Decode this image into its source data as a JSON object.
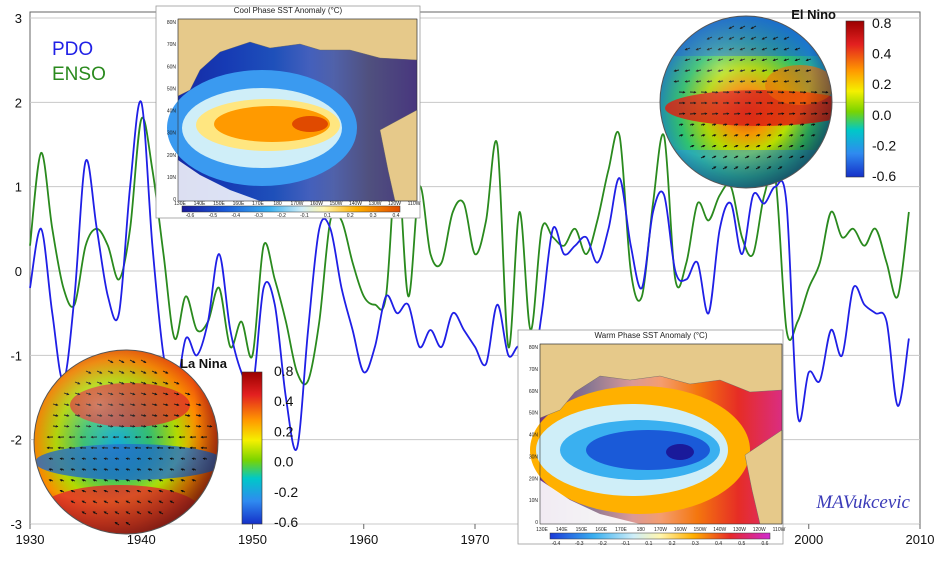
{
  "chart_data": {
    "type": "line",
    "title": "",
    "xlabel": "",
    "ylabel": "",
    "xlim": [
      1930,
      2010
    ],
    "ylim": [
      -3,
      3
    ],
    "x_ticks": [
      "1930",
      "1940",
      "1950",
      "1960",
      "1970",
      "1980",
      "1990",
      "2000",
      "2010"
    ],
    "y_ticks": [
      "3",
      "2",
      "1",
      "0",
      "-1",
      "-2",
      "-3"
    ],
    "grid": true,
    "legend": "top-left",
    "series": [
      {
        "name": "PDO",
        "color": "#1f1fe6",
        "x": [
          1930,
          1931,
          1932,
          1933,
          1934,
          1935,
          1936,
          1937,
          1938,
          1939,
          1940,
          1941,
          1942,
          1943,
          1944,
          1945,
          1946,
          1947,
          1948,
          1949,
          1950,
          1951,
          1952,
          1953,
          1954,
          1955,
          1956,
          1957,
          1958,
          1959,
          1960,
          1961,
          1962,
          1963,
          1964,
          1965,
          1966,
          1967,
          1968,
          1969,
          1970,
          1971,
          1972,
          1973,
          1974,
          1975,
          1976,
          1977,
          1978,
          1979,
          1980,
          1981,
          1982,
          1983,
          1984,
          1985,
          1986,
          1987,
          1988,
          1989,
          1990,
          1991,
          1992,
          1993,
          1994,
          1995,
          1996,
          1997,
          1998,
          1999,
          2000,
          2001,
          2002,
          2003,
          2004,
          2005,
          2006,
          2007,
          2008,
          2009
        ],
        "y": [
          -0.2,
          0.5,
          -0.5,
          -1.3,
          -0.3,
          1.3,
          0.5,
          -0.3,
          -0.5,
          1.0,
          2.0,
          0.3,
          -1.0,
          -1.5,
          -0.8,
          -1.0,
          -0.6,
          0.2,
          -0.7,
          -1.2,
          -1.4,
          -0.2,
          -0.4,
          -1.5,
          -2.1,
          -0.7,
          0.5,
          0.5,
          -0.2,
          -0.7,
          -1.2,
          -0.9,
          -0.3,
          -0.5,
          -0.4,
          -0.9,
          -0.7,
          -0.9,
          -0.5,
          -0.7,
          -0.9,
          -1.1,
          -0.4,
          -1.0,
          -0.9,
          -1.3,
          -0.5,
          0.5,
          0.2,
          0.3,
          0.4,
          0.1,
          0.5,
          1.1,
          0.3,
          -0.2,
          0.7,
          0.9,
          0.0,
          -0.1,
          0.1,
          -0.5,
          0.5,
          0.8,
          0.2,
          0.9,
          0.8,
          1.0,
          0.8,
          -1.7,
          -1.2,
          -1.3,
          -0.7,
          -1.0,
          -0.2,
          -0.4,
          -0.5,
          -0.6,
          -1.6,
          -0.8
        ],
        "values": [
          -0.2,
          0.5,
          -0.5,
          -1.3,
          -0.3,
          1.3,
          0.5,
          -0.3,
          -0.5,
          1.0,
          2.0,
          0.3,
          -1.0,
          -1.5,
          -0.8,
          -1.0,
          -0.6,
          0.2,
          -0.7,
          -1.2,
          -1.4,
          -0.2,
          -0.4,
          -1.5,
          -2.1,
          -0.7,
          0.5,
          0.5,
          -0.2,
          -0.7,
          -1.2,
          -0.9,
          -0.3,
          -0.5,
          -0.4,
          -0.9,
          -0.7,
          -0.9,
          -0.5,
          -0.7,
          -0.9,
          -1.1,
          -0.4,
          -1.0,
          -0.9,
          -1.3,
          -0.5,
          0.5,
          0.2,
          0.3,
          0.4,
          0.1,
          0.5,
          1.1,
          0.3,
          -0.2,
          0.7,
          0.9,
          0.0,
          -0.1,
          0.1,
          -0.5,
          0.5,
          0.8,
          0.2,
          0.9,
          0.8,
          1.0,
          0.8,
          -1.7,
          -1.2,
          -1.3,
          -0.7,
          -1.0,
          -0.2,
          -0.4,
          -0.5,
          -0.6,
          -1.6,
          -0.8
        ]
      },
      {
        "name": "ENSO",
        "color": "#2a8a1e",
        "x": [
          1930,
          1931,
          1932,
          1933,
          1934,
          1935,
          1936,
          1937,
          1938,
          1939,
          1940,
          1941,
          1942,
          1943,
          1944,
          1945,
          1946,
          1947,
          1948,
          1949,
          1950,
          1951,
          1952,
          1953,
          1954,
          1955,
          1956,
          1957,
          1958,
          1959,
          1960,
          1961,
          1962,
          1963,
          1964,
          1965,
          1966,
          1967,
          1968,
          1969,
          1970,
          1971,
          1972,
          1973,
          1974,
          1975,
          1976,
          1977,
          1978,
          1979,
          1980,
          1981,
          1982,
          1983,
          1984,
          1985,
          1986,
          1987,
          1988,
          1989,
          1990,
          1991,
          1992,
          1993,
          1994,
          1995,
          1996,
          1997,
          1998,
          1999,
          2000,
          2001,
          2002,
          2003,
          2004,
          2005,
          2006,
          2007,
          2008,
          2009
        ],
        "y": [
          0.3,
          1.4,
          0.5,
          -0.2,
          -0.4,
          0.3,
          0.5,
          0.3,
          -0.1,
          0.5,
          1.8,
          1.2,
          0.2,
          -0.8,
          -0.3,
          -0.7,
          -0.6,
          -0.2,
          -0.9,
          -0.6,
          -1.0,
          0.3,
          -0.1,
          -0.6,
          -1.2,
          -1.3,
          -0.6,
          0.6,
          0.6,
          0.1,
          -0.3,
          -0.4,
          -0.3,
          1.3,
          -0.3,
          1.0,
          0.2,
          0.1,
          0.7,
          0.8,
          0.2,
          0.6,
          1.5,
          -0.9,
          0.7,
          -0.7,
          0.5,
          0.4,
          0.3,
          0.5,
          0.2,
          0.6,
          1.2,
          1.6,
          0.0,
          -0.3,
          0.8,
          1.6,
          -0.1,
          0.1,
          0.8,
          0.6,
          0.9,
          1.0,
          0.4,
          0.2,
          0.9,
          1.1,
          -0.7,
          -0.6,
          -0.2,
          0.1,
          0.7,
          0.4,
          0.5,
          0.3,
          0.5,
          0.1,
          -0.3,
          0.7
        ],
        "values": [
          0.3,
          1.4,
          0.5,
          -0.2,
          -0.4,
          0.3,
          0.5,
          0.3,
          -0.1,
          0.5,
          1.8,
          1.2,
          0.2,
          -0.8,
          -0.3,
          -0.7,
          -0.6,
          -0.2,
          -0.9,
          -0.6,
          -1.0,
          0.3,
          -0.1,
          -0.6,
          -1.2,
          -1.3,
          -0.6,
          0.6,
          0.6,
          0.1,
          -0.3,
          -0.4,
          -0.3,
          1.3,
          -0.3,
          1.0,
          0.2,
          0.1,
          0.7,
          0.8,
          0.2,
          0.6,
          1.5,
          -0.9,
          0.7,
          -0.7,
          0.5,
          0.4,
          0.3,
          0.5,
          0.2,
          0.6,
          1.2,
          1.6,
          0.0,
          -0.3,
          0.8,
          1.6,
          -0.1,
          0.1,
          0.8,
          0.6,
          0.9,
          1.0,
          0.4,
          0.2,
          0.9,
          1.1,
          -0.7,
          -0.6,
          -0.2,
          0.1,
          0.7,
          0.4,
          0.5,
          0.3,
          0.5,
          0.1,
          -0.3,
          0.7
        ]
      }
    ]
  },
  "legend": {
    "pdo_label": "PDO",
    "enso_label": "ENSO"
  },
  "insets": {
    "cool_phase": {
      "title": "Cool Phase SST Anomaly (°C)",
      "lat_labels": [
        "80N",
        "70N",
        "60N",
        "50N",
        "40N",
        "30N",
        "20N",
        "10N",
        "0"
      ],
      "lon_labels": [
        "130E",
        "140E",
        "150E",
        "160E",
        "170E",
        "180",
        "170W",
        "160W",
        "150W",
        "140W",
        "130W",
        "120W",
        "110W"
      ],
      "scale_labels": [
        "-0.6",
        "-0.5",
        "-0.4",
        "-0.3",
        "-0.2",
        "-0.1",
        "0.1",
        "0.2",
        "0.3",
        "0.4"
      ]
    },
    "warm_phase": {
      "title": "Warm Phase SST Anomaly (°C)",
      "lat_labels": [
        "80N",
        "70N",
        "60N",
        "50N",
        "40N",
        "30N",
        "20N",
        "10N",
        "0"
      ],
      "lon_labels": [
        "130E",
        "140E",
        "150E",
        "160E",
        "170E",
        "180",
        "170W",
        "160W",
        "150W",
        "140W",
        "130W",
        "120W",
        "110W"
      ],
      "scale_labels": [
        "-0.4",
        "-0.3",
        "-0.2",
        "-0.1",
        "0.1",
        "0.2",
        "0.3",
        "0.4",
        "0.5",
        "0.6"
      ]
    },
    "el_nino": {
      "label": "El Nino",
      "colorbar_labels": [
        "0.8",
        "0.4",
        "0.2",
        "0.0",
        "-0.2",
        "-0.6"
      ]
    },
    "la_nina": {
      "label": "La Nina",
      "colorbar_labels": [
        "0.8",
        "0.4",
        "0.2",
        "0.0",
        "-0.2",
        "-0.6"
      ]
    }
  },
  "signature": "MAVukcevic",
  "colors": {
    "pdo": "#1f1fe6",
    "enso": "#2a8a1e",
    "grid": "#c8c8c8",
    "land": "#e6c98a",
    "continent_gray": "#a8a8a8"
  }
}
